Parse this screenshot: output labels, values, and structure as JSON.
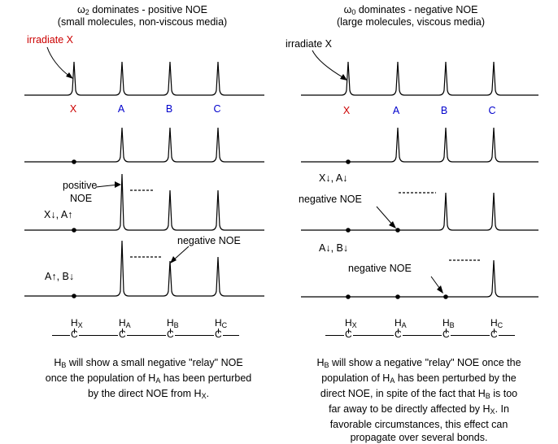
{
  "left": {
    "title_omega": "ω",
    "title_sub": "2",
    "title_rest": " dominates - positive NOE",
    "subtitle": "(small molecules, non-viscous media)",
    "irradiate": "irradiate X",
    "peak_labels": [
      "X",
      "A",
      "B",
      "C"
    ],
    "ann_positive_1": "positive",
    "ann_positive_2": "NOE",
    "change_1": "X↓, A↑",
    "ann_negative": "negative NOE",
    "change_2": "A↑, B↓",
    "caption_l1_a": "H",
    "caption_l1_sub": "B",
    "caption_l1_b": " will show a small negative \"relay\" NOE",
    "caption_l2_a": "once the population of H",
    "caption_l2_sub": "A",
    "caption_l2_b": " has been perturbed",
    "caption_l3_a": "by the direct NOE from H",
    "caption_l3_sub": "X",
    "caption_l3_b": "."
  },
  "right": {
    "title_omega": "ω",
    "title_sub": "0",
    "title_rest": " dominates - negative NOE",
    "subtitle": "(large molecules, viscous media)",
    "irradiate": "irradiate X",
    "peak_labels": [
      "X",
      "A",
      "B",
      "C"
    ],
    "change_1": "X↓, A↓",
    "ann_negative_1": "negative NOE",
    "change_2": "A↓, B↓",
    "ann_negative_2": "negative NOE",
    "caption_l1_a": "H",
    "caption_l1_sub": "B",
    "caption_l1_b": " will show a  negative \"relay\" NOE once the",
    "caption_l2_a": "population of H",
    "caption_l2_sub": "A",
    "caption_l2_b": " has been perturbed by the",
    "caption_l3_a": "direct NOE, in spite of the fact that H",
    "caption_l3_sub": "B",
    "caption_l3_b": " is too",
    "caption_l4_a": "far away to be directly affected by H",
    "caption_l4_sub": "X",
    "caption_l4_b": ".  In",
    "caption_l5": "favorable circumstances, this effect can",
    "caption_l6": "propagate over several bonds."
  },
  "structure": {
    "h": "H",
    "c": "C",
    "subs": [
      "X",
      "A",
      "B",
      "C"
    ]
  },
  "colors": {
    "x_label": "#cc0000",
    "abc_label": "#0000cc",
    "ink": "#000000"
  }
}
